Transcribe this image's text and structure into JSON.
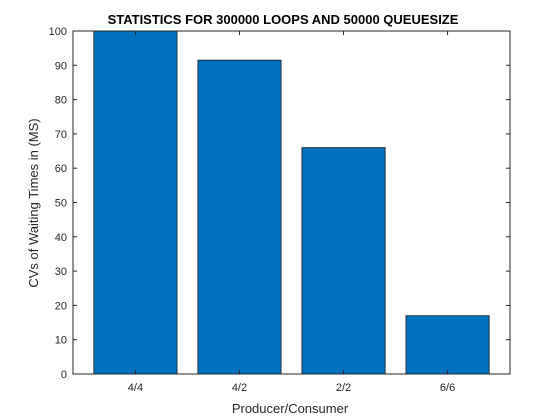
{
  "chart_data": {
    "type": "bar",
    "title": "STATISTICS FOR 300000 LOOPS AND 50000 QUEUESIZE",
    "xlabel": "Producer/Consumer",
    "ylabel": "CVs of Waiting Times in (MS)",
    "categories": [
      "4/4",
      "4/2",
      "2/2",
      "6/6"
    ],
    "values": [
      100,
      91.5,
      66,
      17
    ],
    "ylim": [
      0,
      100
    ],
    "yticks": [
      0,
      10,
      20,
      30,
      40,
      50,
      60,
      70,
      80,
      90,
      100
    ],
    "grid": false,
    "bar_color": "#0072BD"
  }
}
